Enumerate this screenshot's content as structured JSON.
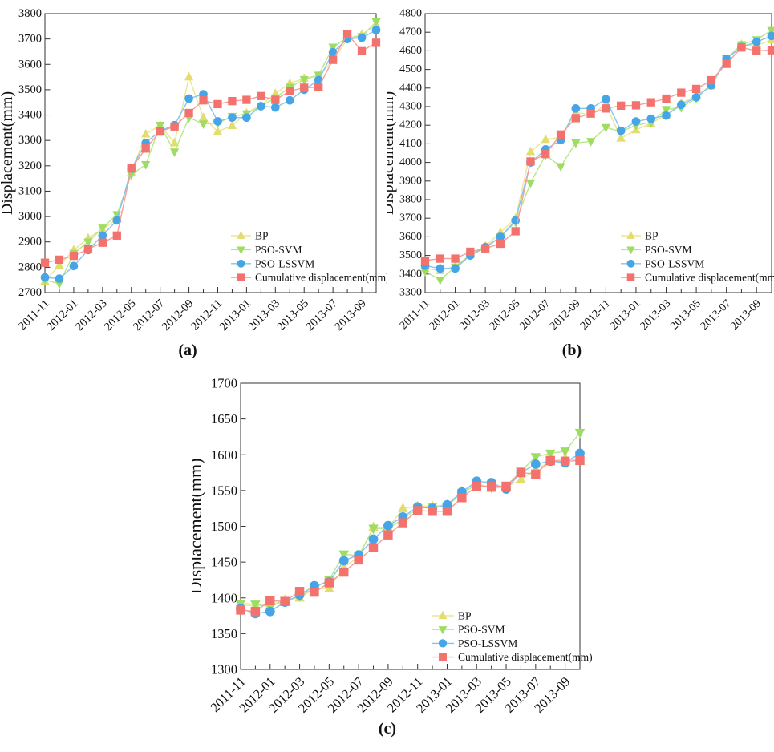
{
  "page": {
    "background": "#ffffff",
    "text_color": "#111111"
  },
  "figure": {
    "captions": {
      "a": "(a)",
      "b": "(b)",
      "c": "(c)"
    }
  },
  "chart_data": [
    {
      "id": "a",
      "type": "line",
      "title": "",
      "xlabel": "",
      "ylabel": "Displacement(mm)",
      "ylim": [
        2700,
        3800
      ],
      "ytick_step": 100,
      "grid": false,
      "legend_position": "lower-right-inside",
      "x": [
        "2011-11",
        "2011-12",
        "2012-01",
        "2012-02",
        "2012-03",
        "2012-04",
        "2012-05",
        "2012-06",
        "2012-07",
        "2012-08",
        "2012-09",
        "2012-10",
        "2012-11",
        "2012-12",
        "2013-01",
        "2013-02",
        "2013-03",
        "2013-04",
        "2013-05",
        "2013-06",
        "2013-07",
        "2013-08",
        "2013-09",
        "2013-10"
      ],
      "x_tick_label_every": 2,
      "series": [
        {
          "name": "BP",
          "marker": "triangle-up",
          "marker_color": "#e3dd6e",
          "line_color": "#ebe594",
          "values": [
            2745,
            2808,
            2868,
            2915,
            2950,
            2990,
            3175,
            3325,
            3360,
            3290,
            3550,
            3390,
            3335,
            3358,
            3408,
            3438,
            3485,
            3525,
            3545,
            3555,
            3615,
            3700,
            3718,
            3755
          ]
        },
        {
          "name": "PSO-SVM",
          "marker": "triangle-down",
          "marker_color": "#9fdd62",
          "line_color": "#b9e68c",
          "values": [
            2750,
            2735,
            2855,
            2900,
            2955,
            3008,
            3165,
            3205,
            3360,
            3255,
            3390,
            3365,
            3368,
            3395,
            3405,
            3435,
            3468,
            3510,
            3540,
            3558,
            3668,
            3705,
            3710,
            3768
          ]
        },
        {
          "name": "PSO-LSSVM",
          "marker": "circle",
          "marker_color": "#45a5e6",
          "line_color": "#85c4ee",
          "values": [
            2760,
            2755,
            2805,
            2868,
            2925,
            2985,
            3188,
            3290,
            3338,
            3360,
            3465,
            3482,
            3375,
            3390,
            3390,
            3435,
            3430,
            3458,
            3500,
            3538,
            3648,
            3700,
            3705,
            3735
          ]
        },
        {
          "name": "Cumulative displacement(mm)",
          "marker": "square",
          "marker_color": "#f4726e",
          "line_color": "#f89d98",
          "values": [
            2818,
            2830,
            2845,
            2872,
            2897,
            2925,
            3190,
            3268,
            3335,
            3355,
            3408,
            3458,
            3443,
            3455,
            3460,
            3475,
            3460,
            3495,
            3508,
            3510,
            3618,
            3720,
            3652,
            3685
          ]
        }
      ]
    },
    {
      "id": "b",
      "type": "line",
      "title": "",
      "xlabel": "",
      "ylabel": "Displacement(mm)",
      "ylim": [
        3300,
        4800
      ],
      "ytick_step": 100,
      "grid": false,
      "legend_position": "lower-right-inside",
      "x": [
        "2011-11",
        "2011-12",
        "2012-01",
        "2012-02",
        "2012-03",
        "2012-04",
        "2012-05",
        "2012-06",
        "2012-07",
        "2012-08",
        "2012-09",
        "2012-10",
        "2012-11",
        "2012-12",
        "2013-01",
        "2013-02",
        "2013-03",
        "2013-04",
        "2013-05",
        "2013-06",
        "2013-07",
        "2013-08",
        "2013-09",
        "2013-10"
      ],
      "x_tick_label_every": 2,
      "series": [
        {
          "name": "BP",
          "marker": "triangle-up",
          "marker_color": "#e3dd6e",
          "line_color": "#ebe594",
          "values": [
            3430,
            3418,
            3443,
            3505,
            3550,
            3623,
            3700,
            4058,
            4123,
            4135,
            4268,
            4258,
            4310,
            4130,
            4175,
            4210,
            4255,
            4318,
            4360,
            4410,
            4555,
            4635,
            4628,
            4658
          ]
        },
        {
          "name": "PSO-SVM",
          "marker": "triangle-down",
          "marker_color": "#9fdd62",
          "line_color": "#b9e68c",
          "values": [
            3415,
            3368,
            3438,
            3500,
            3540,
            3600,
            3680,
            3890,
            4040,
            3978,
            4105,
            4113,
            4188,
            4165,
            4200,
            4215,
            4285,
            4295,
            4345,
            4420,
            4558,
            4633,
            4660,
            4710
          ]
        },
        {
          "name": "PSO-LSSVM",
          "marker": "circle",
          "marker_color": "#45a5e6",
          "line_color": "#85c4ee",
          "values": [
            3445,
            3430,
            3430,
            3500,
            3545,
            3600,
            3688,
            4000,
            4070,
            4120,
            4290,
            4290,
            4340,
            4170,
            4220,
            4235,
            4252,
            4310,
            4350,
            4415,
            4558,
            4620,
            4648,
            4680
          ]
        },
        {
          "name": "Cumulative displacement(mm)",
          "marker": "square",
          "marker_color": "#f4726e",
          "line_color": "#f89d98",
          "values": [
            3472,
            3483,
            3483,
            3520,
            3538,
            3563,
            3630,
            4005,
            4045,
            4150,
            4238,
            4263,
            4290,
            4305,
            4307,
            4323,
            4343,
            4375,
            4395,
            4442,
            4530,
            4618,
            4600,
            4603
          ]
        }
      ]
    },
    {
      "id": "c",
      "type": "line",
      "title": "",
      "xlabel": "",
      "ylabel": "Displacement(mm)",
      "ylim": [
        1300,
        1700
      ],
      "ytick_step": 50,
      "grid": false,
      "legend_position": "lower-right-inside",
      "x": [
        "2011-11",
        "2011-12",
        "2012-01",
        "2012-02",
        "2012-03",
        "2012-04",
        "2012-05",
        "2012-06",
        "2012-07",
        "2012-08",
        "2012-09",
        "2012-10",
        "2012-11",
        "2012-12",
        "2013-01",
        "2013-02",
        "2013-03",
        "2013-04",
        "2013-05",
        "2013-06",
        "2013-07",
        "2013-08",
        "2013-09",
        "2013-10"
      ],
      "x_tick_label_every": 2,
      "series": [
        {
          "name": "BP",
          "marker": "triangle-up",
          "marker_color": "#e3dd6e",
          "line_color": "#ebe594",
          "values": [
            1390,
            1389,
            1390,
            1397,
            1400,
            1413,
            1413,
            1443,
            1457,
            1499,
            1498,
            1525,
            1528,
            1528,
            1530,
            1549,
            1560,
            1553,
            1555,
            1565,
            1580,
            1590,
            1595,
            1591
          ]
        },
        {
          "name": "PSO-SVM",
          "marker": "triangle-down",
          "marker_color": "#9fdd62",
          "line_color": "#b9e68c",
          "values": [
            1392,
            1391,
            1388,
            1396,
            1402,
            1414,
            1425,
            1461,
            1459,
            1497,
            1497,
            1510,
            1525,
            1527,
            1528,
            1547,
            1558,
            1554,
            1556,
            1577,
            1597,
            1602,
            1605,
            1631
          ]
        },
        {
          "name": "PSO-LSSVM",
          "marker": "circle",
          "marker_color": "#45a5e6",
          "line_color": "#85c4ee",
          "values": [
            1385,
            1378,
            1381,
            1394,
            1404,
            1417,
            1422,
            1452,
            1460,
            1482,
            1501,
            1513,
            1527,
            1525,
            1530,
            1548,
            1563,
            1561,
            1552,
            1575,
            1587,
            1591,
            1589,
            1602
          ]
        },
        {
          "name": "Cumulative displacement(mm)",
          "marker": "square",
          "marker_color": "#f4726e",
          "line_color": "#f89d98",
          "values": [
            1383,
            1381,
            1396,
            1395,
            1409,
            1408,
            1421,
            1436,
            1453,
            1470,
            1488,
            1505,
            1522,
            1521,
            1521,
            1540,
            1556,
            1556,
            1556,
            1575,
            1573,
            1592,
            1591,
            1592
          ]
        }
      ]
    }
  ]
}
